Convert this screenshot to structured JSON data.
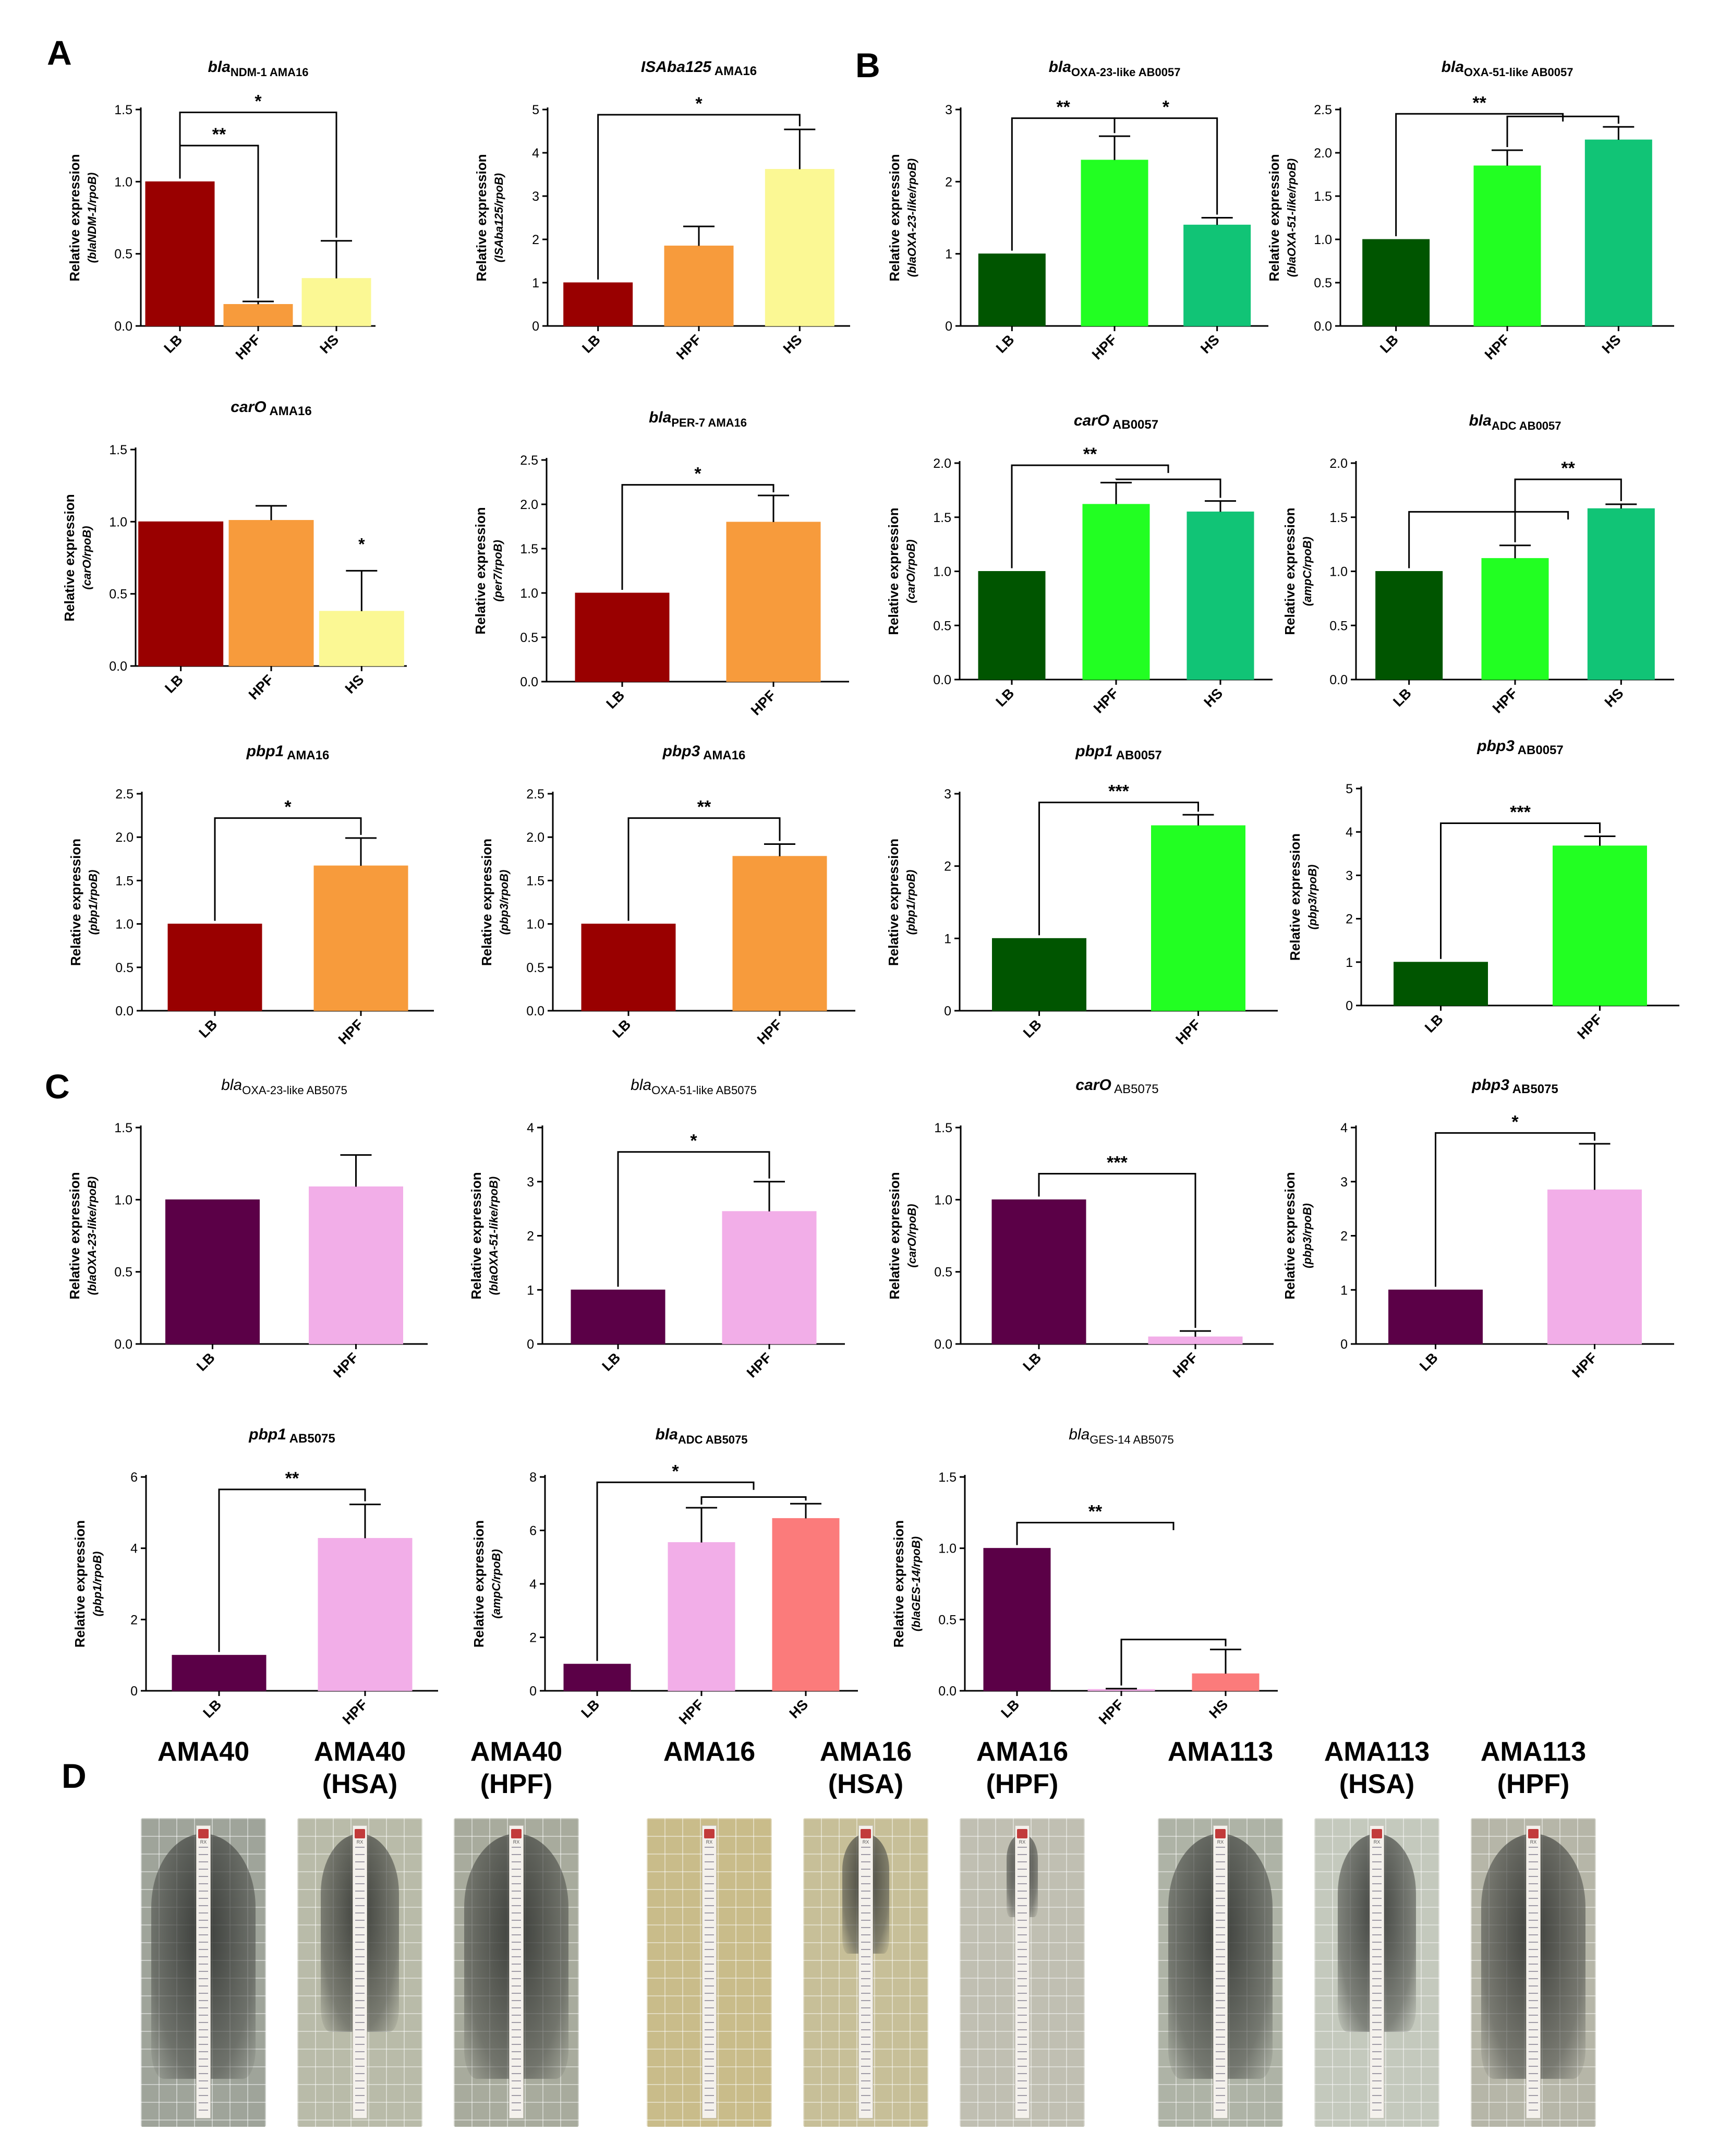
{
  "panel_letters": {
    "A": "A",
    "B": "B",
    "C": "C",
    "D": "D"
  },
  "yaxis_prefix": "Relative expression",
  "colors": {
    "LB_A": "#990000",
    "HPF_A": "#f79b3c",
    "HS_A": "#fbf894",
    "LB_B": "#005500",
    "HPF_B": "#22ff22",
    "HS_B": "#11c476",
    "LB_C": "#5b0047",
    "HPF_C": "#f2aee8",
    "HS_C": "#fb7b7b"
  },
  "chart_data": [
    {
      "id": "A1",
      "type": "bar",
      "title": "bla",
      "title_sub": "NDM-1 AMA16",
      "title_mode": "italic-sub",
      "ylabel_html": "(<i>bla</i><sub>NDM-1</sub>/<i>rpoB</i>)",
      "ylabel2": "(blaNDM-1/rpoB)",
      "categories": [
        "LB",
        "HPF",
        "HS"
      ],
      "values": [
        1.0,
        0.15,
        0.33
      ],
      "errors": [
        0,
        0.02,
        0.26
      ],
      "ylim": [
        0,
        1.5
      ],
      "yticks": [
        "0.0",
        "0.5",
        "1.0",
        "1.5"
      ],
      "brackets": [
        {
          "from": 0,
          "to": 2,
          "label": "*",
          "y": 1.48
        },
        {
          "from": 0,
          "to": 1,
          "label": "**",
          "y": 1.25
        }
      ]
    },
    {
      "id": "A2",
      "type": "bar",
      "title": "ISAba125",
      "title_sub": "AMA16",
      "title_mode": "bolditalic-title",
      "ylabel_html": "(IS<i>Aba125</i>/<i>rpoB</i>)",
      "ylabel2": "(ISAba125/rpoB)",
      "categories": [
        "LB",
        "HPF",
        "HS"
      ],
      "values": [
        1.0,
        1.85,
        3.62
      ],
      "errors": [
        0,
        0.45,
        0.92
      ],
      "ylim": [
        0,
        5
      ],
      "yticks": [
        "0",
        "1",
        "2",
        "3",
        "4",
        "5"
      ],
      "brackets": [
        {
          "from": 0,
          "to": 2,
          "label": "*",
          "y": 4.88
        }
      ]
    },
    {
      "id": "B1",
      "type": "bar",
      "title": "bla",
      "title_sub": "OXA-23-like AB0057",
      "title_mode": "italic-sub",
      "ylabel_html": "(<i>bla</i><sub>OXA-23-like</sub>/<i>rpoB</i>)",
      "ylabel2": "(blaOXA-23-like/rpoB)",
      "categories": [
        "LB",
        "HPF",
        "HS"
      ],
      "values": [
        1.0,
        2.3,
        1.4
      ],
      "errors": [
        0,
        0.33,
        0.1
      ],
      "ylim": [
        0,
        3
      ],
      "yticks": [
        "0",
        "1",
        "2",
        "3"
      ],
      "brackets": [
        {
          "from": 0,
          "to": 1,
          "label": "**",
          "y": 2.88
        },
        {
          "from": 1,
          "to": 2,
          "label": "*",
          "y": 2.88
        }
      ]
    },
    {
      "id": "B2",
      "type": "bar",
      "title": "bla",
      "title_sub": "OXA-51-like AB0057",
      "title_mode": "italic-sub",
      "ylabel_html": "(<i>bla</i><sub>OXA-51-like</sub>/<i>rpoB</i>)",
      "ylabel2": "(blaOXA-51-like/rpoB)",
      "categories": [
        "LB",
        "HPF",
        "HS"
      ],
      "values": [
        1.0,
        1.85,
        2.15
      ],
      "errors": [
        0,
        0.18,
        0.15
      ],
      "ylim": [
        0,
        2.5
      ],
      "yticks": [
        "0.0",
        "0.5",
        "1.0",
        "1.5",
        "2.0",
        "2.5"
      ],
      "brackets": [
        {
          "from": 0,
          "to": 1.5,
          "label": "**",
          "y": 2.45
        },
        {
          "from": 1,
          "to": 2,
          "label": "",
          "y": 2.42
        }
      ]
    },
    {
      "id": "A3",
      "type": "bar",
      "title": "carO",
      "title_sub": "AMA16",
      "title_mode": "bolditalic-title",
      "ylabel_html": "(<i>carO</i>/<i>rpoB</i>)",
      "ylabel2": "(carO/rpoB)",
      "categories": [
        "LB",
        "HPF",
        "HS"
      ],
      "values": [
        1.0,
        1.01,
        0.38
      ],
      "errors": [
        0,
        0.1,
        0.28
      ],
      "ylim": [
        0,
        1.5
      ],
      "yticks": [
        "0.0",
        "0.5",
        "1.0",
        "1.5"
      ],
      "brackets": [],
      "star_labels": [
        {
          "index": 2,
          "label": "*"
        }
      ]
    },
    {
      "id": "A4",
      "type": "bar",
      "title": "bla",
      "title_sub": "PER-7 AMA16",
      "title_mode": "italic-sub",
      "ylabel_html": "(<i>per7</i>/<i>rpoB</i>)",
      "ylabel2": "(per7/rpoB)",
      "categories": [
        "LB",
        "HPF"
      ],
      "values": [
        1.0,
        1.8
      ],
      "errors": [
        0,
        0.3
      ],
      "ylim": [
        0,
        2.5
      ],
      "yticks": [
        "0.0",
        "0.5",
        "1.0",
        "1.5",
        "2.0",
        "2.5"
      ],
      "brackets": [
        {
          "from": 0,
          "to": 1,
          "label": "*",
          "y": 2.22
        }
      ]
    },
    {
      "id": "B3",
      "type": "bar",
      "title": "carO",
      "title_sub": "AB0057",
      "title_mode": "bolditalic-title",
      "ylabel_html": "(<i>carO</i>/<i>rpoB</i>)",
      "ylabel2": "(carO/rpoB)",
      "categories": [
        "LB",
        "HPF",
        "HS"
      ],
      "values": [
        1.0,
        1.62,
        1.55
      ],
      "errors": [
        0,
        0.2,
        0.1
      ],
      "ylim": [
        0,
        2.0
      ],
      "yticks": [
        "0.0",
        "0.5",
        "1.0",
        "1.5",
        "2.0"
      ],
      "brackets": [
        {
          "from": 0,
          "to": 1.5,
          "label": "**",
          "y": 1.98
        },
        {
          "from": 1,
          "to": 2,
          "label": "",
          "y": 1.85
        }
      ]
    },
    {
      "id": "B4",
      "type": "bar",
      "title": "bla",
      "title_sub": "ADC AB0057",
      "title_mode": "italic-sub",
      "ylabel_html": "(<i>ampC</i>/<i>rpoB</i>)",
      "ylabel2": "(ampC/rpoB)",
      "categories": [
        "LB",
        "HPF",
        "HS"
      ],
      "values": [
        1.0,
        1.12,
        1.58
      ],
      "errors": [
        0,
        0.12,
        0.04
      ],
      "ylim": [
        0,
        2.0
      ],
      "yticks": [
        "0.0",
        "0.5",
        "1.0",
        "1.5",
        "2.0"
      ],
      "brackets": [
        {
          "from": 1,
          "to": 2,
          "label": "**",
          "y": 1.85
        },
        {
          "from": 0,
          "to": 1.5,
          "label": "",
          "y": 1.55
        }
      ]
    },
    {
      "id": "A5",
      "type": "bar",
      "title": "pbp1",
      "title_sub": "AMA16",
      "title_mode": "bolditalic-title",
      "ylabel_html": "(<i>pbp1</i>/<i>rpoB</i>)",
      "ylabel2": "(pbp1/rpoB)",
      "categories": [
        "LB",
        "HPF"
      ],
      "values": [
        1.0,
        1.67
      ],
      "errors": [
        0,
        0.32
      ],
      "ylim": [
        0,
        2.5
      ],
      "yticks": [
        "0.0",
        "0.5",
        "1.0",
        "1.5",
        "2.0",
        "2.5"
      ],
      "brackets": [
        {
          "from": 0,
          "to": 1,
          "label": "*",
          "y": 2.22
        }
      ]
    },
    {
      "id": "A6",
      "type": "bar",
      "title": "pbp3",
      "title_sub": "AMA16",
      "title_mode": "bolditalic-title",
      "ylabel_html": "(<i>pbp3</i>/<i>rpoB</i>)",
      "ylabel2": "(pbp3/rpoB)",
      "categories": [
        "LB",
        "HPF"
      ],
      "values": [
        1.0,
        1.78
      ],
      "errors": [
        0,
        0.14
      ],
      "ylim": [
        0,
        2.5
      ],
      "yticks": [
        "0.0",
        "0.5",
        "1.0",
        "1.5",
        "2.0",
        "2.5"
      ],
      "brackets": [
        {
          "from": 0,
          "to": 1,
          "label": "**",
          "y": 2.22
        }
      ]
    },
    {
      "id": "B5",
      "type": "bar",
      "title": "pbp1",
      "title_sub": "AB0057",
      "title_mode": "bolditalic-title",
      "ylabel_html": "(<i>pbp1</i>/<i>rpoB</i>)",
      "ylabel2": "(pbp1/rpoB)",
      "categories": [
        "LB",
        "HPF"
      ],
      "values": [
        1.0,
        2.56
      ],
      "errors": [
        0,
        0.15
      ],
      "ylim": [
        0,
        3
      ],
      "yticks": [
        "0",
        "1",
        "2",
        "3"
      ],
      "brackets": [
        {
          "from": 0,
          "to": 1,
          "label": "***",
          "y": 2.88
        }
      ]
    },
    {
      "id": "B6",
      "type": "bar",
      "title": "pbp3",
      "title_sub": "AB0057",
      "title_mode": "bolditalic-title",
      "ylabel_html": "(<i>pbp3</i>/<i>rpoB</i>)",
      "ylabel2": "(pbp3/rpoB)",
      "categories": [
        "LB",
        "HPF"
      ],
      "values": [
        1.0,
        3.68
      ],
      "errors": [
        0,
        0.22
      ],
      "ylim": [
        0,
        5
      ],
      "yticks": [
        "0",
        "1",
        "2",
        "3",
        "4",
        "5"
      ],
      "brackets": [
        {
          "from": 0,
          "to": 1,
          "label": "***",
          "y": 4.2
        }
      ]
    },
    {
      "id": "C1",
      "type": "bar",
      "title": "bla",
      "title_sub": "OXA-23-like AB5075",
      "title_mode": "plain-sub",
      "ylabel_html": "(<i>bla</i><sub>OXA-23-like</sub>/<i>rpoB</i>)",
      "ylabel2": "(blaOXA-23-like/rpoB)",
      "categories": [
        "LB",
        "HPF"
      ],
      "values": [
        1.0,
        1.09
      ],
      "errors": [
        0,
        0.22
      ],
      "ylim": [
        0,
        1.5
      ],
      "yticks": [
        "0.0",
        "0.5",
        "1.0",
        "1.5"
      ],
      "brackets": []
    },
    {
      "id": "C2",
      "type": "bar",
      "title": "bla",
      "title_sub": "OXA-51-like AB5075",
      "title_mode": "plain-sub",
      "ylabel_html": "(<i>bla</i><sub>OXA-51-like</sub>/<i>rpoB</i>)",
      "ylabel2": "(blaOXA-51-like/rpoB)",
      "categories": [
        "LB",
        "HPF"
      ],
      "values": [
        1.0,
        2.45
      ],
      "errors": [
        0,
        0.55
      ],
      "ylim": [
        0,
        4
      ],
      "yticks": [
        "0",
        "1",
        "2",
        "3",
        "4"
      ],
      "brackets": [
        {
          "from": 0,
          "to": 1,
          "label": "*",
          "y": 3.55
        }
      ]
    },
    {
      "id": "C3",
      "type": "bar",
      "title": "carO",
      "title_sub": "AB5075",
      "title_mode": "plain-italic-title",
      "ylabel_html": "(<i>carO</i>/<i>rpoB</i>)",
      "ylabel2": "(carO/rpoB)",
      "categories": [
        "LB",
        "HPF"
      ],
      "values": [
        1.0,
        0.05
      ],
      "errors": [
        0,
        0.04
      ],
      "ylim": [
        0,
        1.5
      ],
      "yticks": [
        "0.0",
        "0.5",
        "1.0",
        "1.5"
      ],
      "brackets": [
        {
          "from": 0,
          "to": 1,
          "label": "***",
          "y": 1.18
        }
      ]
    },
    {
      "id": "C4",
      "type": "bar",
      "title": "pbp3",
      "title_sub": "AB5075",
      "title_mode": "bolditalic-title",
      "ylabel_html": "(<i>pbp3</i>/<i>rpoB</i>)",
      "ylabel2": "(pbp3/rpoB)",
      "categories": [
        "LB",
        "HPF"
      ],
      "values": [
        1.0,
        2.85
      ],
      "errors": [
        0,
        0.85
      ],
      "ylim": [
        0,
        4
      ],
      "yticks": [
        "0",
        "1",
        "2",
        "3",
        "4"
      ],
      "brackets": [
        {
          "from": 0,
          "to": 1,
          "label": "*",
          "y": 3.9
        }
      ]
    },
    {
      "id": "C5",
      "type": "bar",
      "title": "pbp1",
      "title_sub": "AB5075",
      "title_mode": "bolditalic-title",
      "ylabel_html": "(<i>pbp1</i>/<i>rpoB</i>)",
      "ylabel2": "(pbp1/rpoB)",
      "categories": [
        "LB",
        "HPF"
      ],
      "values": [
        1.0,
        4.28
      ],
      "errors": [
        0,
        0.95
      ],
      "ylim": [
        0,
        6
      ],
      "yticks": [
        "0",
        "2",
        "4",
        "6"
      ],
      "brackets": [
        {
          "from": 0,
          "to": 1,
          "label": "**",
          "y": 5.65
        }
      ]
    },
    {
      "id": "C6",
      "type": "bar",
      "title": "bla",
      "title_sub": "ADC AB5075",
      "title_mode": "italic-sub",
      "ylabel_html": "(<i>ampC</i>/<i>rpoB</i>)",
      "ylabel2": "(ampC/rpoB)",
      "categories": [
        "LB",
        "HPF",
        "HS"
      ],
      "values": [
        1.0,
        5.55,
        6.45
      ],
      "errors": [
        0,
        1.3,
        0.55
      ],
      "ylim": [
        0,
        8
      ],
      "yticks": [
        "0",
        "2",
        "4",
        "6",
        "8"
      ],
      "brackets": [
        {
          "from": 0,
          "to": 1.5,
          "label": "*",
          "y": 7.8
        },
        {
          "from": 1,
          "to": 2,
          "label": "",
          "y": 7.25
        }
      ]
    },
    {
      "id": "C7",
      "type": "bar",
      "title": "bla",
      "title_sub": "GES-14 AB5075",
      "title_mode": "plain-sub",
      "ylabel_html": "(<i>bla</i><sub>GES-14</sub>/<i>rpoB</i>)",
      "ylabel2": "(blaGES-14/rpoB)",
      "categories": [
        "LB",
        "HPF",
        "HS"
      ],
      "values": [
        1.0,
        0.01,
        0.12
      ],
      "errors": [
        0,
        0.005,
        0.17
      ],
      "ylim": [
        0,
        1.5
      ],
      "yticks": [
        "0.0",
        "0.5",
        "1.0",
        "1.5"
      ],
      "brackets": [
        {
          "from": 0,
          "to": 1.5,
          "label": "**",
          "y": 1.18
        },
        {
          "from": 1,
          "to": 2,
          "label": "",
          "y": 0.36
        }
      ]
    }
  ],
  "panel_d": {
    "strains": [
      {
        "name": "AMA40",
        "cond": ""
      },
      {
        "name": "AMA40",
        "cond": "(HSA)"
      },
      {
        "name": "AMA40",
        "cond": "(HPF)"
      },
      {
        "name": "AMA16",
        "cond": ""
      },
      {
        "name": "AMA16",
        "cond": "(HSA)"
      },
      {
        "name": "AMA16",
        "cond": "(HPF)"
      },
      {
        "name": "AMA113",
        "cond": ""
      },
      {
        "name": "AMA113",
        "cond": "(HSA)"
      },
      {
        "name": "AMA113",
        "cond": "(HPF)"
      }
    ],
    "plate_colors": [
      "#9fa49a",
      "#b9bba9",
      "#a8ab9d",
      "#c9bc8a",
      "#c7bf98",
      "#c0bfb2",
      "#aeb3a6",
      "#c4c9bd",
      "#b6b6a8"
    ],
    "zone_sizes": [
      "large",
      "medium",
      "large",
      "none",
      "small",
      "tiny",
      "large",
      "medium",
      "large"
    ],
    "strip_code": "RX"
  }
}
